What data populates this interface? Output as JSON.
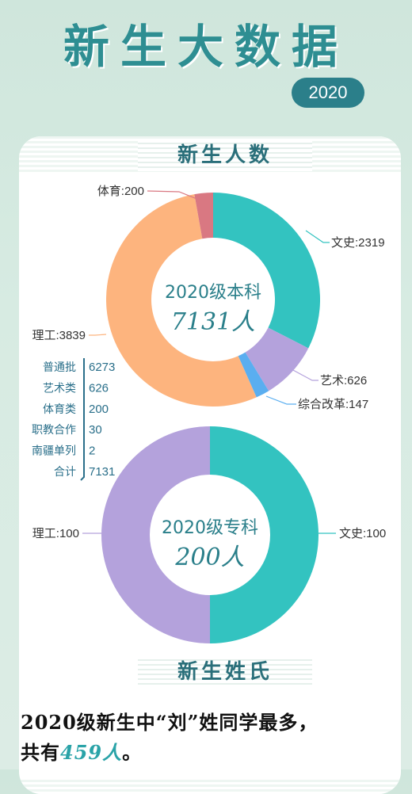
{
  "header": {
    "title": "新生大数据",
    "year": "2020"
  },
  "sections": {
    "enrollment": "新生人数",
    "surnames": "新生姓氏"
  },
  "colors": {
    "teal": "#33c3c0",
    "purple": "#b4a2dc",
    "blue": "#5aaef0",
    "orange": "#fdb47e",
    "rose": "#d97882"
  },
  "chart_data": [
    {
      "type": "pie",
      "center_line1": "2020级本科",
      "center_line2": "7131人",
      "slices": [
        {
          "name": "文史",
          "value": 2319,
          "label": "文史:2319",
          "color": "#33c3c0"
        },
        {
          "name": "艺术",
          "value": 626,
          "label": "艺术:626",
          "color": "#b4a2dc"
        },
        {
          "name": "综合改革",
          "value": 147,
          "label": "综合改革:147",
          "color": "#5aaef0"
        },
        {
          "name": "理工",
          "value": 3839,
          "label": "理工:3839",
          "color": "#fdb47e"
        },
        {
          "name": "体育",
          "value": 200,
          "label": "体育:200",
          "color": "#d97882"
        }
      ]
    },
    {
      "type": "pie",
      "center_line1": "2020级专科",
      "center_line2": "200人",
      "slices": [
        {
          "name": "文史",
          "value": 100,
          "label": "文史:100",
          "color": "#33c3c0"
        },
        {
          "name": "理工",
          "value": 100,
          "label": "理工:100",
          "color": "#b4a2dc"
        }
      ]
    }
  ],
  "breakdown": [
    {
      "label": "普通批",
      "value": "6273"
    },
    {
      "label": "艺术类",
      "value": "626"
    },
    {
      "label": "体育类",
      "value": "200"
    },
    {
      "label": "职教合作",
      "value": "30"
    },
    {
      "label": "南疆单列",
      "value": "2"
    },
    {
      "label": "合计",
      "value": "7131"
    }
  ],
  "surname": {
    "line1": "2020级新生中“刘”姓同学最多，",
    "line2_prefix": "共有",
    "line2_count": "459人",
    "line2_suffix": "。"
  }
}
